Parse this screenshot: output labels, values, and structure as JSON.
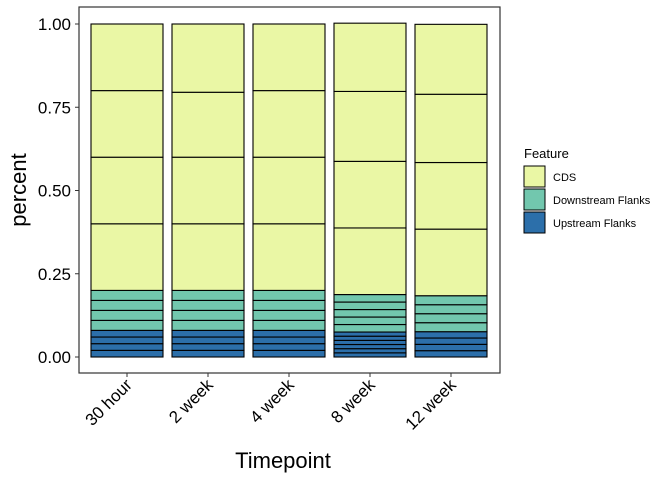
{
  "chart_data": {
    "type": "bar",
    "stacked": true,
    "categories": [
      "30 hour",
      "2 week",
      "4 week",
      "8 week",
      "12 week"
    ],
    "xlabel": "Timepoint",
    "ylabel": "percent",
    "ylim": [
      0,
      1
    ],
    "yticks": [
      "0.00",
      "0.25",
      "0.50",
      "0.75",
      "1.00"
    ],
    "grid": false,
    "legend": {
      "title": "Feature",
      "position": "right"
    },
    "series": [
      {
        "name": "Upstream Flanks",
        "color": "#2C6FAA",
        "segments": [
          [
            0.02,
            0.02,
            0.02,
            0.02
          ],
          [
            0.02,
            0.02,
            0.02,
            0.02
          ],
          [
            0.02,
            0.02,
            0.02,
            0.02
          ],
          [
            0.0125,
            0.0125,
            0.0125,
            0.0125,
            0.0125,
            0.0125
          ],
          [
            0.019,
            0.019,
            0.019,
            0.019
          ]
        ]
      },
      {
        "name": "Downstream Flanks",
        "color": "#72C7AE",
        "segments": [
          [
            0.03,
            0.03,
            0.03,
            0.03
          ],
          [
            0.03,
            0.03,
            0.03,
            0.03
          ],
          [
            0.03,
            0.03,
            0.03,
            0.03
          ],
          [
            0.0225,
            0.0225,
            0.0225,
            0.0225,
            0.0225
          ],
          [
            0.027,
            0.027,
            0.027,
            0.027
          ]
        ]
      },
      {
        "name": "CDS",
        "color": "#EAF7A5",
        "segments": [
          [
            0.2,
            0.2,
            0.2,
            0.2
          ],
          [
            0.2,
            0.2,
            0.195,
            0.205
          ],
          [
            0.2,
            0.2,
            0.2,
            0.2
          ],
          [
            0.2,
            0.2,
            0.21,
            0.205
          ],
          [
            0.2,
            0.2,
            0.205,
            0.21
          ]
        ]
      }
    ]
  }
}
